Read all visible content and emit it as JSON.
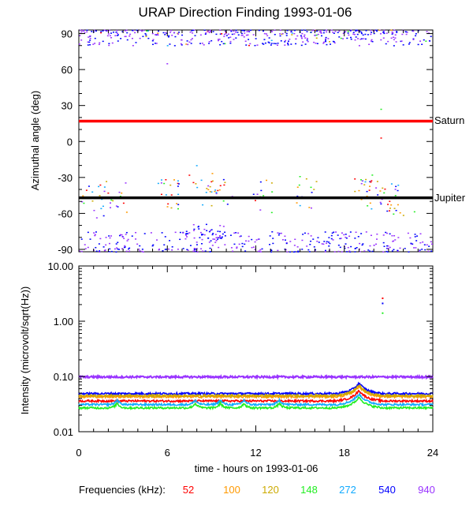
{
  "chart_data": [
    {
      "type": "scatter",
      "title": "URAP Direction Finding  1993-01-06",
      "ylabel": "Azimuthal angle (deg)",
      "ylim": [
        -92,
        93
      ],
      "xlim": [
        0,
        24
      ],
      "yticks": [
        "90",
        "60",
        "30",
        "0",
        "-30",
        "-60",
        "-90"
      ],
      "ytick_values": [
        90,
        60,
        30,
        0,
        -30,
        -60,
        -90
      ],
      "reference_lines": [
        {
          "label": "Saturn",
          "value": 17,
          "color": "#ff0000"
        },
        {
          "label": "Jupiter",
          "value": -47,
          "color": "#000000"
        }
      ],
      "scatter_bands": [
        {
          "name": "near +90",
          "center": 87,
          "spread": 6,
          "density": "high"
        },
        {
          "name": "near -90",
          "center": -87,
          "spread": 6,
          "density": "high"
        },
        {
          "name": "near Jupiter",
          "center": -45,
          "spread": 14,
          "density": "sparse"
        }
      ]
    },
    {
      "type": "line",
      "ylabel": "Intensity (microvolt/sqrt(Hz))",
      "yscale": "log",
      "ylim": [
        0.01,
        10
      ],
      "xlim": [
        0,
        24
      ],
      "yticks": [
        "10.00",
        "1.00",
        "0.10",
        "0.01"
      ],
      "ytick_values": [
        10,
        1,
        0.1,
        0.01
      ],
      "series": [
        {
          "name": "52",
          "baseline": 0.036
        },
        {
          "name": "100",
          "baseline": 0.043
        },
        {
          "name": "120",
          "baseline": 0.045
        },
        {
          "name": "148",
          "baseline": 0.027
        },
        {
          "name": "272",
          "baseline": 0.031
        },
        {
          "name": "540",
          "baseline": 0.049
        },
        {
          "name": "940",
          "baseline": 0.098
        }
      ],
      "peak_time_hours": 19
    }
  ],
  "xaxis": {
    "label": "time - hours on 1993-01-06",
    "ticks": [
      "0",
      "6",
      "12",
      "18",
      "24"
    ],
    "tick_values": [
      0,
      6,
      12,
      18,
      24
    ]
  },
  "legend": {
    "label": "Frequencies (kHz):",
    "items": [
      {
        "text": "52",
        "color": "#ff0000"
      },
      {
        "text": "100",
        "color": "#ff9900"
      },
      {
        "text": "120",
        "color": "#ccaa00"
      },
      {
        "text": "148",
        "color": "#22ee22"
      },
      {
        "text": "272",
        "color": "#11aaff"
      },
      {
        "text": "540",
        "color": "#0000ff"
      },
      {
        "text": "940",
        "color": "#9933ff"
      }
    ]
  }
}
